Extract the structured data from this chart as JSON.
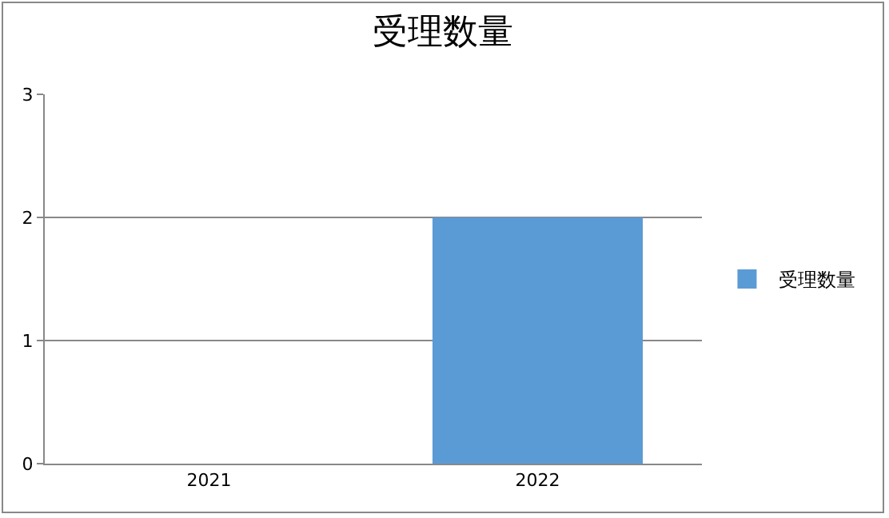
{
  "chart_data": {
    "type": "bar",
    "title": "受理数量",
    "categories": [
      "2021",
      "2022"
    ],
    "series": [
      {
        "name": "受理数量",
        "color": "#5b9bd5",
        "values": [
          0,
          2
        ]
      }
    ],
    "ylim": [
      0,
      3
    ],
    "yticks": [
      0,
      1,
      2,
      3
    ],
    "grid": "y",
    "legend": "right"
  }
}
